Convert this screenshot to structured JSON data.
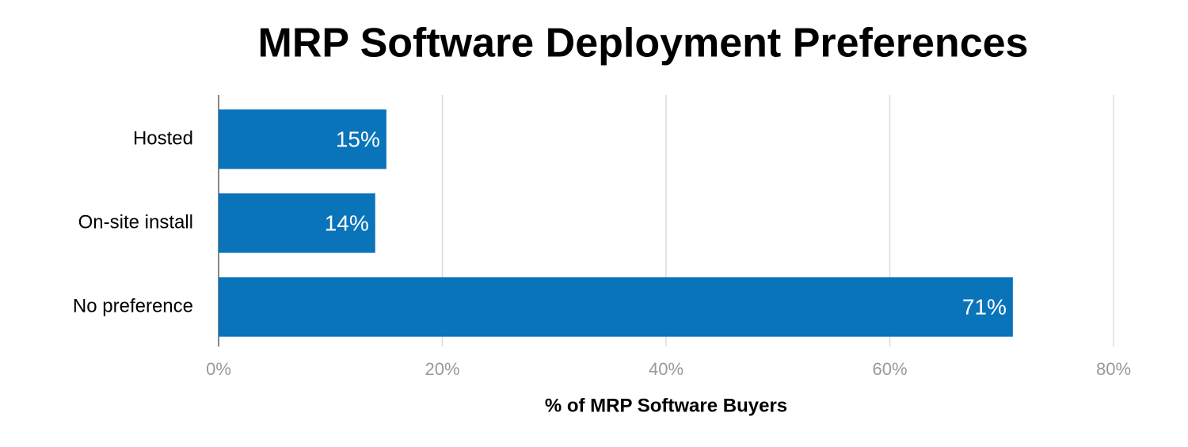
{
  "chart_data": {
    "type": "bar",
    "orientation": "horizontal",
    "title": "MRP Software Deployment Preferences",
    "x_label": "% of MRP Software Buyers",
    "categories": [
      "Hosted",
      "On-site install",
      "No preference"
    ],
    "values": [
      15,
      14,
      71
    ],
    "value_labels": [
      "15%",
      "14%",
      "71%"
    ],
    "color": "#0a74bb",
    "xlim": [
      0,
      80
    ],
    "xticks": [
      {
        "value": 0,
        "label": "0%"
      },
      {
        "value": 20,
        "label": "20%"
      },
      {
        "value": 40,
        "label": "40%"
      },
      {
        "value": 60,
        "label": "60%"
      },
      {
        "value": 80,
        "label": "80%"
      }
    ],
    "grid": true
  }
}
